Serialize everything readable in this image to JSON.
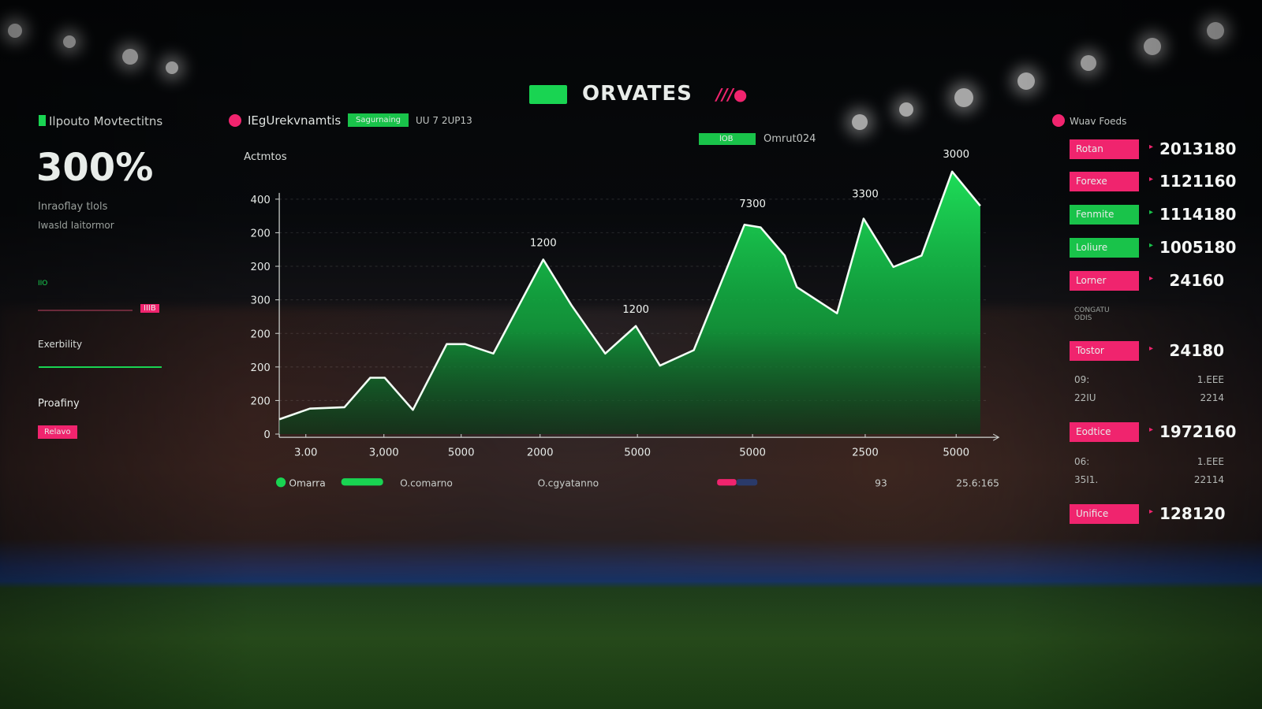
{
  "header": {
    "title": "ORVATES"
  },
  "left_panel": {
    "title": "Ilpouto Movtectitns",
    "big_value": "300%",
    "line1": "Inraoflay tlols",
    "line2": "Iwasld Iaitormor",
    "small_label": "IIO",
    "pink_tag": "IIIB",
    "section1": "Exerbility",
    "section2": "Proafiny",
    "button": "Relavo"
  },
  "chart_header": {
    "title": "IEgUrekvnamtis",
    "chip": "Sagurnaing",
    "date": "UU 7 2UP13",
    "chip2": "lOB",
    "sub": "Omrut024"
  },
  "chart_data": {
    "type": "area",
    "y_label": "Actmtos",
    "x": [
      0,
      38,
      81,
      113,
      131,
      166,
      208,
      231,
      266,
      328,
      363,
      405,
      443,
      473,
      515,
      578,
      598,
      628,
      643,
      693,
      726,
      763,
      798,
      836,
      871
    ],
    "series": [
      {
        "name": "Omarra",
        "color": "#19d452",
        "values": [
          22,
          38,
          40,
          84,
          84,
          36,
          134,
          134,
          120,
          260,
          192,
          120,
          161,
          102,
          125,
          312,
          308,
          266,
          219,
          180,
          321,
          249,
          266,
          391,
          340
        ]
      }
    ],
    "xlim": [
      0,
      880
    ],
    "ylim": [
      0,
      400
    ],
    "xticks": [
      {
        "value": 33,
        "label": "3.00"
      },
      {
        "value": 130,
        "label": "3,000"
      },
      {
        "value": 226,
        "label": "5000"
      },
      {
        "value": 324,
        "label": "2000"
      },
      {
        "value": 445,
        "label": "5000"
      },
      {
        "value": 588,
        "label": "5000"
      },
      {
        "value": 728,
        "label": "2500"
      },
      {
        "value": 841,
        "label": "5000"
      }
    ],
    "yticks": [
      0,
      {
        "value": 50,
        "label": "200"
      },
      {
        "value": 100,
        "label": "200"
      },
      {
        "value": 150,
        "label": "200"
      },
      {
        "value": 200,
        "label": "300"
      },
      {
        "value": 250,
        "label": "200"
      },
      {
        "value": 300,
        "label": "200"
      },
      {
        "value": 350,
        "label": "400"
      }
    ],
    "grid": true,
    "annotations": [
      {
        "text": "1200",
        "x": 328,
        "y": 280
      },
      {
        "text": "1200",
        "x": 443,
        "y": 181
      },
      {
        "text": "7300",
        "x": 588,
        "y": 338
      },
      {
        "text": "3300",
        "x": 728,
        "y": 353
      },
      {
        "text": "3000",
        "x": 841,
        "y": 412
      }
    ],
    "legend_extras": [
      "O.comarno",
      "O.cgyatanno",
      "93",
      "25.6:165"
    ]
  },
  "right_panel": {
    "title": "Wuav Foeds",
    "rows": [
      {
        "label": "Rotan",
        "value": "2013180",
        "color": "#f0246e"
      },
      {
        "label": "Forexe",
        "value": "1121160",
        "color": "#f0246e"
      },
      {
        "label": "Fenmite",
        "value": "1114180",
        "color": "#19c34a"
      },
      {
        "label": "Loliure",
        "value": "1005180",
        "color": "#19c34a"
      },
      {
        "label": "Lorner",
        "value": "24160",
        "color": "#f0246e"
      }
    ],
    "note": "CONGATU ODIS",
    "row6": {
      "label": "Tostor",
      "value": "24180",
      "color": "#f0246e"
    },
    "stats1": [
      "09:",
      "1.EEE",
      "22IU",
      "2214"
    ],
    "row7": {
      "label": "Eodtice",
      "value": "1972160",
      "color": "#f0246e"
    },
    "stats2": [
      "06:",
      "1.EEE",
      "35I1.",
      "22114"
    ],
    "row8": {
      "label": "Unifice",
      "value": "128120",
      "color": "#f0246e"
    }
  }
}
